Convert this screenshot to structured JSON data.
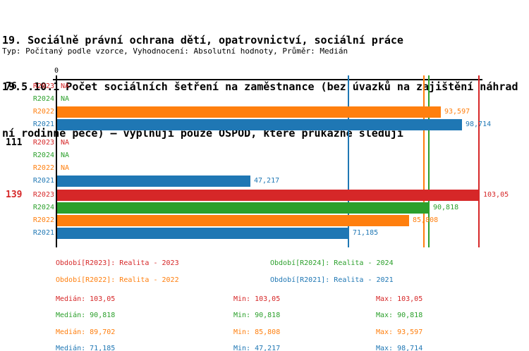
{
  "header": {
    "title_line1": "19. Sociálně právní ochrana dětí, opatrovnictví, sociální práce",
    "title_line2": "19.5.10.1 Počet sociálních šetření na zaměstnance (bez úvazků na zajištění náhrad",
    "title_line3": "ní rodinné péče) – vyplňují pouze OSPOD, které průkazně sledují",
    "meta": "Typ: Počítaný podle vzorce, Vyhodnocení: Absolutní hodnoty, Průměr: Medián"
  },
  "chart_data": {
    "type": "bar",
    "orientation": "horizontal",
    "axis_zero_label": "0",
    "xlim": [
      0,
      104
    ],
    "grid": false,
    "series": [
      {
        "id": "R2023",
        "name": "Realita - 2023",
        "color": "#d62728",
        "median": 103.05,
        "min": 103.05,
        "max": 103.05
      },
      {
        "id": "R2024",
        "name": "Realita - 2024",
        "color": "#2ca02c",
        "median": 90.818,
        "min": 90.818,
        "max": 90.818
      },
      {
        "id": "R2022",
        "name": "Realita - 2022",
        "color": "#ff7f0e",
        "median": 89.702,
        "min": 85.808,
        "max": 93.597
      },
      {
        "id": "R2021",
        "name": "Realita - 2021",
        "color": "#1f77b4",
        "median": 71.185,
        "min": 47.217,
        "max": 98.714
      }
    ],
    "groups": [
      {
        "label": "76",
        "label_color": "#000000",
        "bars": [
          {
            "series": "R2023",
            "value": null,
            "display": "NA"
          },
          {
            "series": "R2024",
            "value": null,
            "display": "NA"
          },
          {
            "series": "R2022",
            "value": 93.597,
            "display": "93,597"
          },
          {
            "series": "R2021",
            "value": 98.714,
            "display": "98,714"
          }
        ]
      },
      {
        "label": "111",
        "label_color": "#000000",
        "bars": [
          {
            "series": "R2023",
            "value": null,
            "display": "NA"
          },
          {
            "series": "R2024",
            "value": null,
            "display": "NA"
          },
          {
            "series": "R2022",
            "value": null,
            "display": "NA"
          },
          {
            "series": "R2021",
            "value": 47.217,
            "display": "47,217"
          }
        ]
      },
      {
        "label": "139",
        "label_color": "#d62728",
        "bars": [
          {
            "series": "R2023",
            "value": 103.05,
            "display": "103,05"
          },
          {
            "series": "R2024",
            "value": 90.818,
            "display": "90,818"
          },
          {
            "series": "R2022",
            "value": 85.808,
            "display": "85,808"
          },
          {
            "series": "R2021",
            "value": 71.185,
            "display": "71,185"
          }
        ]
      }
    ],
    "median_lines": [
      {
        "series": "R2023",
        "value": 103.05
      },
      {
        "series": "R2024",
        "value": 90.818
      },
      {
        "series": "R2022",
        "value": 89.702
      },
      {
        "series": "R2021",
        "value": 71.185
      }
    ]
  },
  "legend": {
    "items": [
      {
        "series": "R2023",
        "text": "Období[R2023]: Realita - 2023",
        "color": "#d62728"
      },
      {
        "series": "R2024",
        "text": "Období[R2024]: Realita - 2024",
        "color": "#2ca02c"
      },
      {
        "series": "R2022",
        "text": "Období[R2022]: Realita - 2022",
        "color": "#ff7f0e"
      },
      {
        "series": "R2021",
        "text": "Období[R2021]: Realita - 2021",
        "color": "#1f77b4"
      }
    ]
  },
  "stats": {
    "rows": [
      {
        "series": "R2023",
        "color": "#d62728",
        "median": "Medián: 103,05",
        "min": "Min: 103,05",
        "max": "Max: 103,05"
      },
      {
        "series": "R2024",
        "color": "#2ca02c",
        "median": "Medián: 90,818",
        "min": "Min: 90,818",
        "max": "Max: 90,818"
      },
      {
        "series": "R2022",
        "color": "#ff7f0e",
        "median": "Medián: 89,702",
        "min": "Min: 85,808",
        "max": "Max: 93,597"
      },
      {
        "series": "R2021",
        "color": "#1f77b4",
        "median": "Medián: 71,185",
        "min": "Min: 47,217",
        "max": "Max: 98,714"
      }
    ]
  }
}
